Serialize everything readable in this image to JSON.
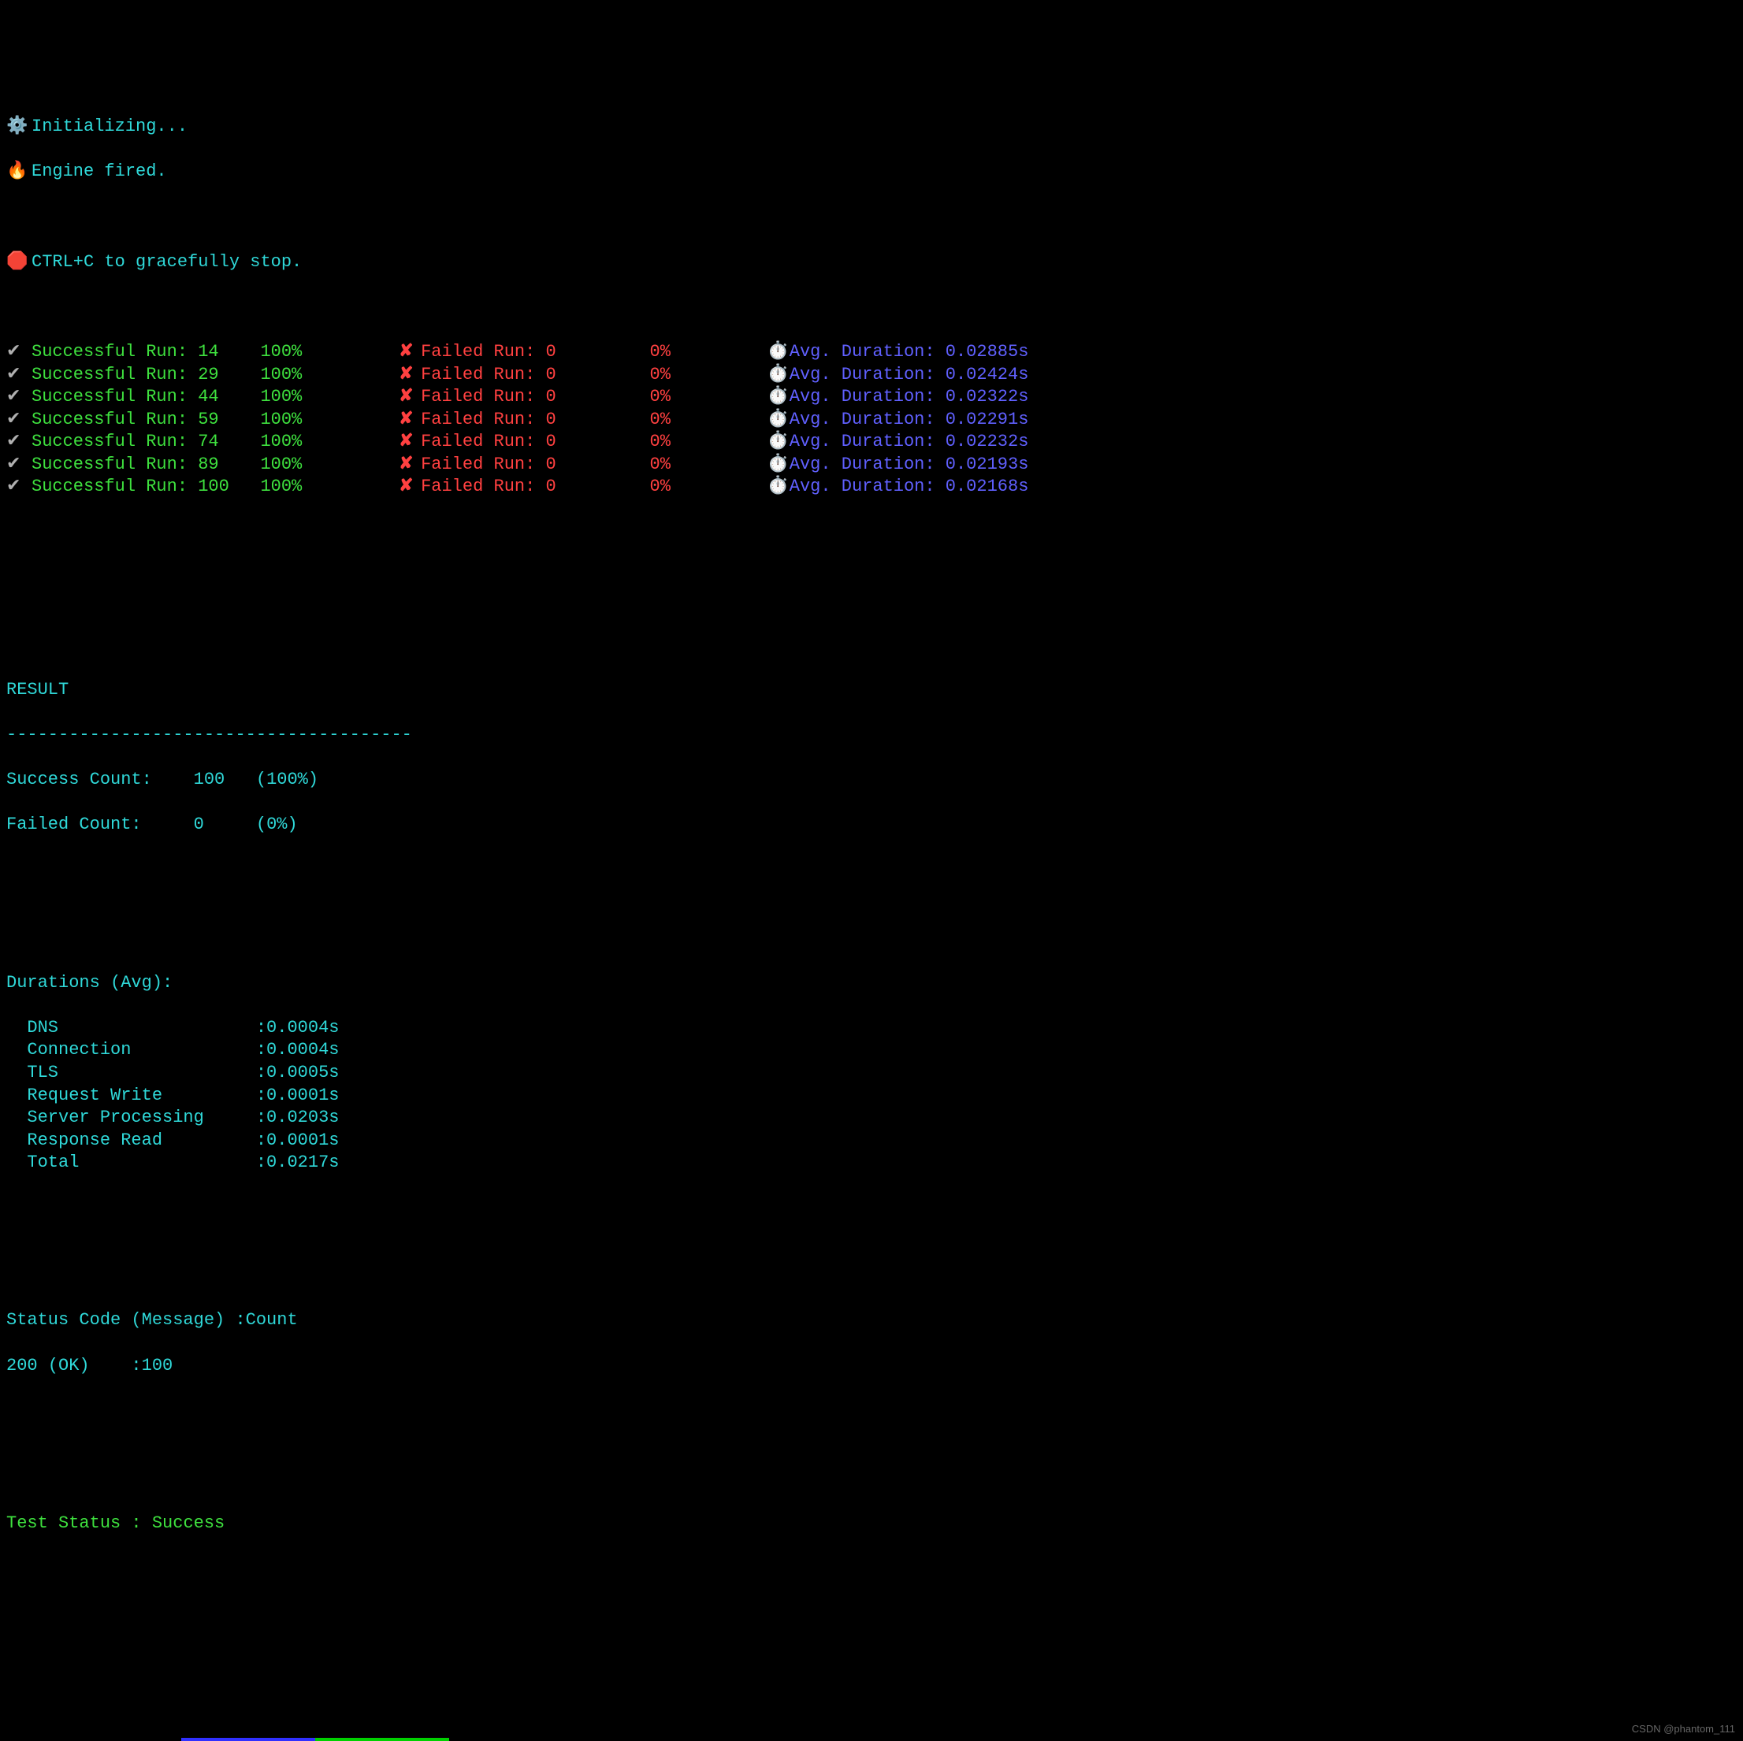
{
  "colors": {
    "bg": "#000000",
    "cyan": "#2fd8d8",
    "green": "#3ee03e",
    "red": "#ff4040",
    "purple": "#6060ff",
    "grey": "#b0b0b0",
    "white": "#e8e8e8",
    "watermark": "#666666"
  },
  "header": {
    "init_icon": "⚙️",
    "init_text": "Initializing...",
    "fire_icon": "🔥",
    "fire_text": "Engine fired.",
    "stop_icon": "🛑",
    "stop_text": "CTRL+C to gracefully stop."
  },
  "run_labels": {
    "success_prefix": "Successful Run:",
    "failed_prefix": "Failed Run:",
    "duration_prefix": "Avg. Duration:"
  },
  "runs": [
    {
      "success_count": "14",
      "success_pct": "100%",
      "failed_count": "0",
      "failed_pct": "0%",
      "avg_duration": "0.02885s"
    },
    {
      "success_count": "29",
      "success_pct": "100%",
      "failed_count": "0",
      "failed_pct": "0%",
      "avg_duration": "0.02424s"
    },
    {
      "success_count": "44",
      "success_pct": "100%",
      "failed_count": "0",
      "failed_pct": "0%",
      "avg_duration": "0.02322s"
    },
    {
      "success_count": "59",
      "success_pct": "100%",
      "failed_count": "0",
      "failed_pct": "0%",
      "avg_duration": "0.02291s"
    },
    {
      "success_count": "74",
      "success_pct": "100%",
      "failed_count": "0",
      "failed_pct": "0%",
      "avg_duration": "0.02232s"
    },
    {
      "success_count": "89",
      "success_pct": "100%",
      "failed_count": "0",
      "failed_pct": "0%",
      "avg_duration": "0.02193s"
    },
    {
      "success_count": "100",
      "success_pct": "100%",
      "failed_count": "0",
      "failed_pct": "0%",
      "avg_duration": "0.02168s"
    }
  ],
  "icons": {
    "check": "✔",
    "cross": "✘",
    "stopwatch": "⏱️"
  },
  "result": {
    "title": "RESULT",
    "divider": "---------------------------------------",
    "success_label": "Success Count:",
    "success_value": "100",
    "success_pct": "(100%)",
    "failed_label": "Failed Count:",
    "failed_value": "0",
    "failed_pct": "(0%)"
  },
  "durations": {
    "title": "Durations (Avg):",
    "rows": [
      {
        "label": "DNS",
        "value": ":0.0004s"
      },
      {
        "label": "Connection",
        "value": ":0.0004s"
      },
      {
        "label": "TLS",
        "value": ":0.0005s"
      },
      {
        "label": "Request Write",
        "value": ":0.0001s"
      },
      {
        "label": "Server Processing",
        "value": ":0.0203s"
      },
      {
        "label": "Response Read",
        "value": ":0.0001s"
      },
      {
        "label": "Total",
        "value": ":0.0217s"
      }
    ]
  },
  "status_code": {
    "header": "Status Code (Message) :Count",
    "line": "200 (OK)    :100"
  },
  "test_status": {
    "label": "Test Status :",
    "value": "Success"
  },
  "watermark": "CSDN @phantom_111",
  "bottom_bar": {
    "segments": [
      {
        "color": "#3030ff",
        "width": 170
      },
      {
        "color": "#00d000",
        "width": 170
      }
    ]
  }
}
